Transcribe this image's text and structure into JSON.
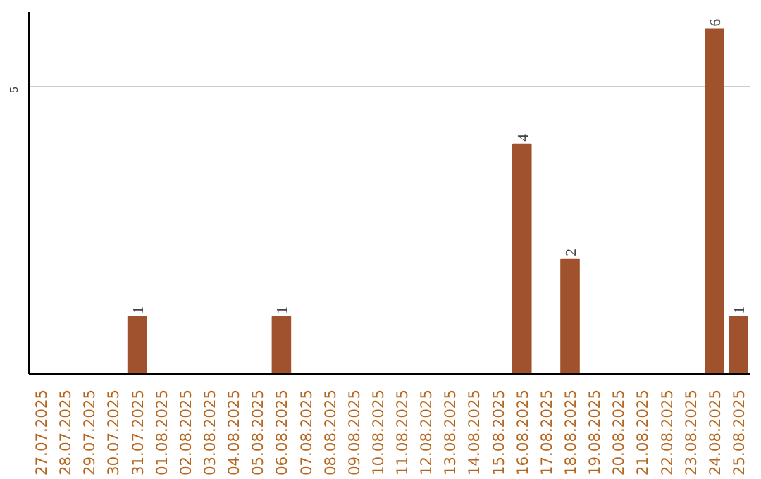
{
  "chart_data": {
    "type": "bar",
    "categories": [
      "27.07.2025",
      "28.07.2025",
      "29.07.2025",
      "30.07.2025",
      "31.07.2025",
      "01.08.2025",
      "02.08.2025",
      "03.08.2025",
      "04.08.2025",
      "05.08.2025",
      "06.08.2025",
      "07.08.2025",
      "08.08.2025",
      "09.08.2025",
      "10.08.2025",
      "11.08.2025",
      "12.08.2025",
      "13.08.2025",
      "14.08.2025",
      "15.08.2025",
      "16.08.2025",
      "17.08.2025",
      "18.08.2025",
      "19.08.2025",
      "20.08.2025",
      "21.08.2025",
      "22.08.2025",
      "23.08.2025",
      "24.08.2025",
      "25.08.2025"
    ],
    "values": [
      0,
      0,
      0,
      0,
      1,
      0,
      0,
      0,
      0,
      0,
      1,
      0,
      0,
      0,
      0,
      0,
      0,
      0,
      0,
      0,
      4,
      0,
      2,
      0,
      0,
      0,
      0,
      0,
      6,
      1
    ],
    "value_labels": [
      null,
      null,
      null,
      null,
      "1",
      null,
      null,
      null,
      null,
      null,
      "1",
      null,
      null,
      null,
      null,
      null,
      null,
      null,
      null,
      null,
      "4",
      null,
      "2",
      null,
      null,
      null,
      null,
      null,
      "6",
      "1"
    ],
    "color": "#a0522d",
    "ylim": [
      0,
      6.3
    ],
    "yticks": [
      5
    ],
    "grid": "y"
  }
}
